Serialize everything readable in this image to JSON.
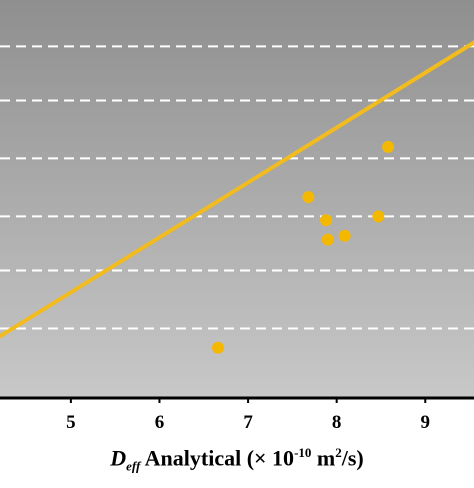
{
  "chart_data": {
    "type": "scatter",
    "title": "",
    "xlabel": {
      "symbol": "D",
      "subscript": "eff",
      "text": " Analytical (× 10",
      "exponent": "-10",
      "units_start": " m",
      "units_exponent": "2",
      "units_end": "/s)"
    },
    "ylabel": "",
    "xlim": [
      4.2,
      9.55
    ],
    "ylim": [
      -0.05,
      0.98
    ],
    "xticks": [
      "5",
      "6",
      "7",
      "8",
      "9"
    ],
    "grid": "horizontal dashed",
    "background": "gradient grey",
    "points": [
      {
        "x": 6.66,
        "y": 0.08
      },
      {
        "x": 7.68,
        "y": 0.47
      },
      {
        "x": 7.88,
        "y": 0.41
      },
      {
        "x": 7.9,
        "y": 0.36
      },
      {
        "x": 8.09,
        "y": 0.37
      },
      {
        "x": 8.47,
        "y": 0.42
      },
      {
        "x": 8.58,
        "y": 0.6
      }
    ],
    "fit_line": {
      "x": [
        4.2,
        9.55
      ],
      "y": [
        0.11,
        0.87
      ]
    },
    "gridlines_y": [
      0.13,
      0.28,
      0.42,
      0.57,
      0.72,
      0.86
    ],
    "colors": {
      "points": "#f5b800",
      "line": "#f2bb1e",
      "grid": "#ffffff",
      "bg_top": "#8f8f8f",
      "bg_bottom": "#c8c8c8"
    }
  }
}
